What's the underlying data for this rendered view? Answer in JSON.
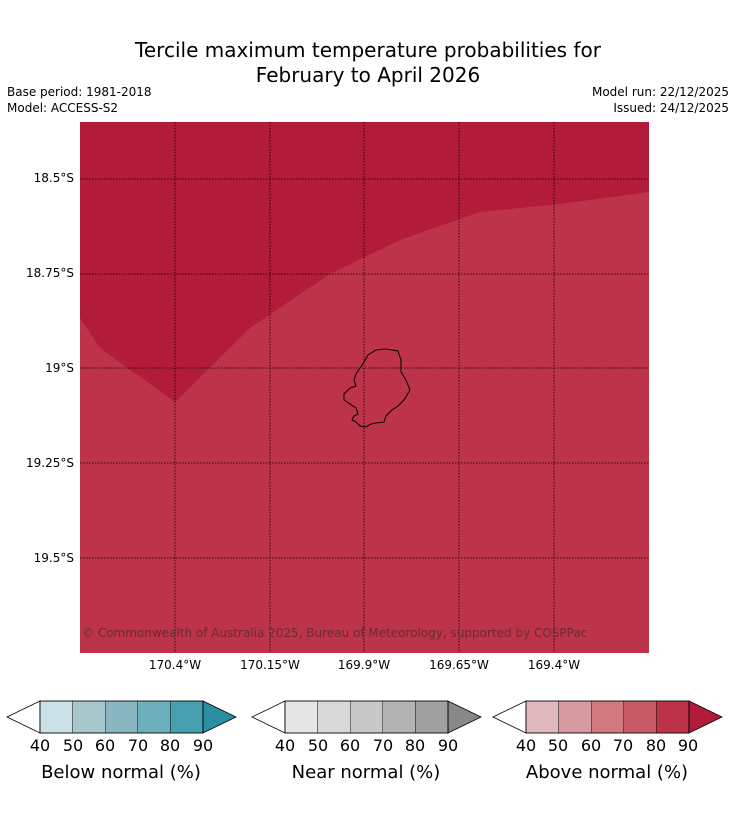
{
  "title_line1": "Tercile maximum temperature probabilities for",
  "title_line2": "February to April 2026",
  "base_period": "Base period: 1981-2018",
  "model": "Model: ACCESS-S2",
  "model_run": "Model run: 22/12/2025",
  "issued": "Issued: 24/12/2025",
  "copyright": "© Commonwealth of Australia 2025, Bureau of Meteorology, supported by COSPPac",
  "lat_labels": [
    "18.5°S",
    "18.75°S",
    "19°S",
    "19.25°S",
    "19.5°S"
  ],
  "lon_labels": [
    "170.4°W",
    "170.15°W",
    "169.9°W",
    "169.65°W",
    "169.4°W"
  ],
  "map_colors": {
    "above_90": "#b21c3a",
    "above_80": "#bd344a",
    "land_outline": "#000000",
    "grid": "#000000"
  },
  "legends": [
    {
      "title": "Below normal (%)",
      "ticks": [
        "40",
        "50",
        "60",
        "70",
        "80",
        "90"
      ],
      "colors": [
        "#ffffff",
        "#c9e1e7",
        "#a7c7cd",
        "#8ab6c2",
        "#6dafbd",
        "#47a0b0",
        "#2b8fa3"
      ]
    },
    {
      "title": "Near normal (%)",
      "ticks": [
        "40",
        "50",
        "60",
        "70",
        "80",
        "90"
      ],
      "colors": [
        "#ffffff",
        "#e6e6e6",
        "#d8d8d8",
        "#c8c8c8",
        "#b3b3b3",
        "#a0a0a0",
        "#888888"
      ]
    },
    {
      "title": "Above normal (%)",
      "ticks": [
        "40",
        "50",
        "60",
        "70",
        "80",
        "90"
      ],
      "colors": [
        "#ffffff",
        "#e1b8bd",
        "#d89aa1",
        "#d17980",
        "#c65a65",
        "#bd344a",
        "#b21c3a"
      ]
    }
  ]
}
